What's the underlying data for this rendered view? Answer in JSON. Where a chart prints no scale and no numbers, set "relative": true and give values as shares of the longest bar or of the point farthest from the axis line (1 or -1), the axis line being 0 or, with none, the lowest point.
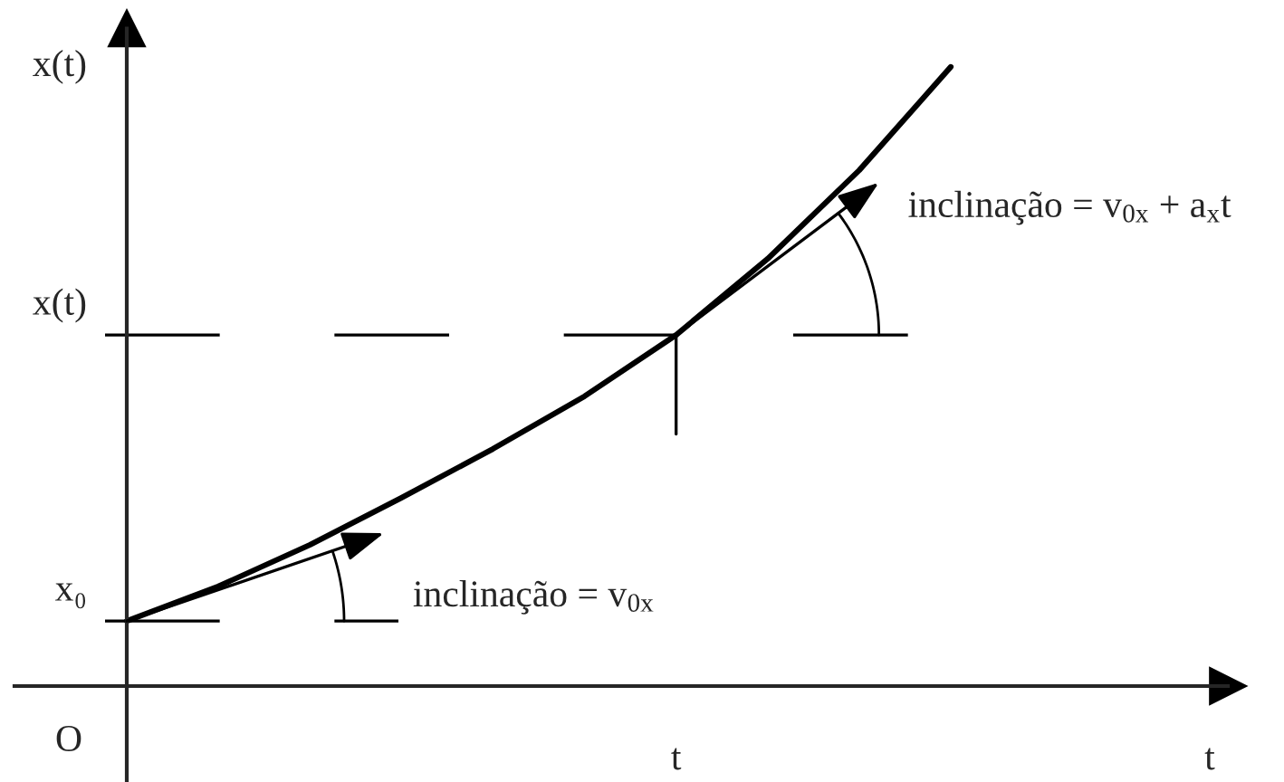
{
  "chart_data": {
    "type": "line",
    "relative": true,
    "ylabel": "x(t)",
    "legend": false,
    "marker": "none",
    "line_style": "solid",
    "categories": [
      null,
      null,
      null,
      null,
      null,
      null,
      null,
      null,
      null,
      null
    ],
    "series": [
      {
        "color": "#000000",
        "values": [
          0.105,
          0.161,
          0.228,
          0.304,
          0.383,
          0.468,
          0.567,
          0.69,
          0.833,
          1
        ]
      }
    ],
    "ref_lines": [
      {
        "axis": "y",
        "value": 0.105,
        "label": "x₀",
        "line_style": "dashed",
        "color": "#000000"
      },
      {
        "axis": "y",
        "value": 0.567,
        "label": "x(t)",
        "line_style": "dashed",
        "color": "#000000"
      }
    ],
    "annotations": [
      "inclinação = v$_{0x}$ + a$_{x}$t",
      "inclinação = v$_{0x}$",
      "t",
      "t",
      "O"
    ]
  }
}
